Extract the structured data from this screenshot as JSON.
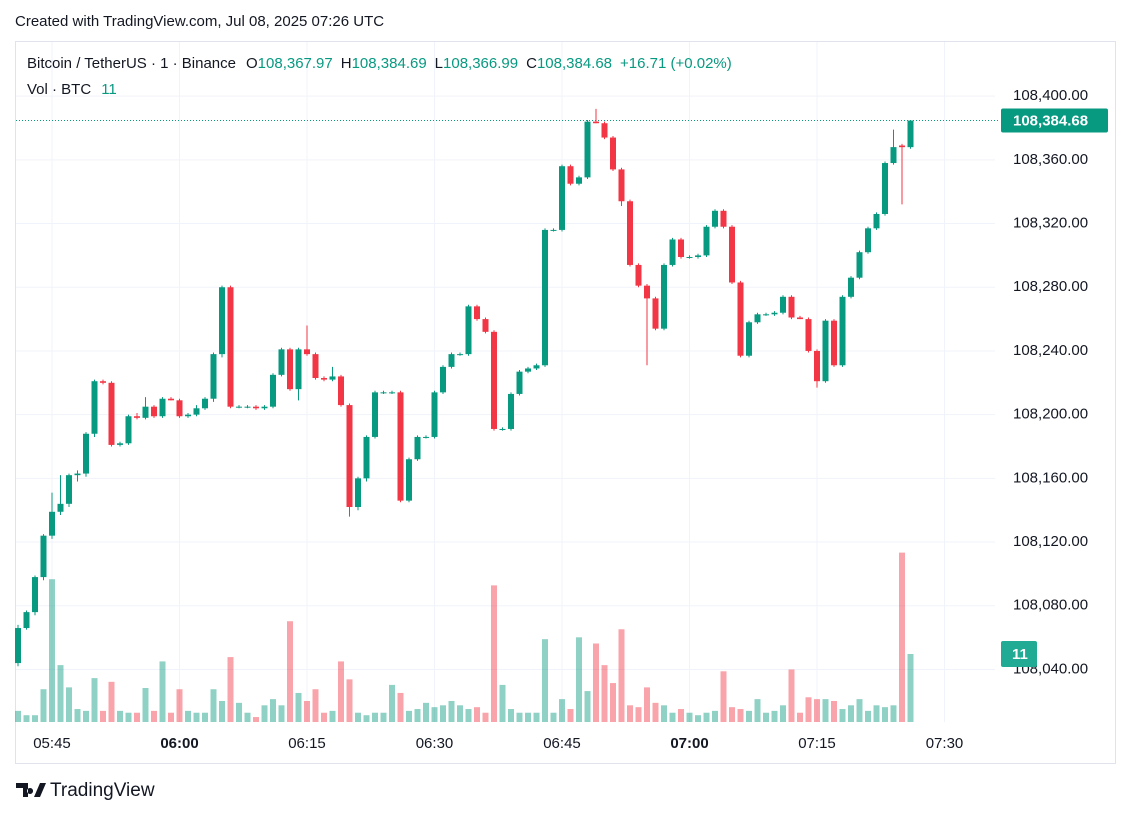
{
  "header": {
    "created": "Created with TradingView.com, Jul 08, 2025 07:26 UTC"
  },
  "footer": {
    "brand": "TradingView"
  },
  "chart_data": {
    "type": "candlestick",
    "title": "Bitcoin / TetherUS · 1 · Binance",
    "legend": [
      {
        "key": "O",
        "value": "108,367.97"
      },
      {
        "key": "H",
        "value": "108,384.69"
      },
      {
        "key": "L",
        "value": "108,366.99"
      },
      {
        "key": "C",
        "value": "108,384.68"
      }
    ],
    "change": "+16.71 (+0.02%)",
    "up_color": "#089981",
    "down_color": "#f23645",
    "grid": true,
    "x": [
      "05:41",
      "05:42",
      "05:43",
      "05:44",
      "05:45",
      "05:46",
      "05:47",
      "05:48",
      "05:49",
      "05:50",
      "05:51",
      "05:52",
      "05:53",
      "05:54",
      "05:55",
      "05:56",
      "05:57",
      "05:58",
      "05:59",
      "06:00",
      "06:01",
      "06:02",
      "06:03",
      "06:04",
      "06:05",
      "06:06",
      "06:07",
      "06:08",
      "06:09",
      "06:10",
      "06:11",
      "06:12",
      "06:13",
      "06:14",
      "06:15",
      "06:16",
      "06:17",
      "06:18",
      "06:19",
      "06:20",
      "06:21",
      "06:22",
      "06:23",
      "06:24",
      "06:25",
      "06:26",
      "06:27",
      "06:28",
      "06:29",
      "06:30",
      "06:31",
      "06:32",
      "06:33",
      "06:34",
      "06:35",
      "06:36",
      "06:37",
      "06:38",
      "06:39",
      "06:40",
      "06:41",
      "06:42",
      "06:43",
      "06:44",
      "06:45",
      "06:46",
      "06:47",
      "06:48",
      "06:49",
      "06:50",
      "06:51",
      "06:52",
      "06:53",
      "06:54",
      "06:55",
      "06:56",
      "06:57",
      "06:58",
      "06:59",
      "07:00",
      "07:01",
      "07:02",
      "07:03",
      "07:04",
      "07:05",
      "07:06",
      "07:07",
      "07:08",
      "07:09",
      "07:10",
      "07:11",
      "07:12",
      "07:13",
      "07:14",
      "07:15",
      "07:16",
      "07:17",
      "07:18",
      "07:19",
      "07:20",
      "07:21",
      "07:22",
      "07:23",
      "07:24",
      "07:25",
      "07:26"
    ],
    "ohlc": {
      "open": [
        108044,
        108066,
        108076,
        108098,
        108124,
        108139,
        108144,
        108162,
        108163,
        108188,
        108221,
        108220,
        108181,
        108182,
        108199,
        108198,
        108205,
        108199,
        108210,
        108209,
        108199,
        108200,
        108204,
        108210,
        108238,
        108280,
        108205,
        108205,
        108205,
        108204,
        108205,
        108225,
        108241,
        108216,
        108241,
        108238,
        108223,
        108222,
        108224,
        108206,
        108142,
        108160,
        108186,
        108214,
        108214,
        108214,
        108146,
        108172,
        108186,
        108186,
        108214,
        108230,
        108238,
        108238,
        108268,
        108260,
        108252,
        108191,
        108191,
        108213,
        108227,
        108229,
        108231,
        108316,
        108316,
        108356,
        108345,
        108349,
        108384,
        108383,
        108374,
        108354,
        108334,
        108294,
        108281,
        108273,
        108254,
        108294,
        108310,
        108299,
        108299,
        108300,
        108318,
        108328,
        108318,
        108283,
        108237,
        108258,
        108263,
        108263,
        108264,
        108274,
        108261,
        108260,
        108240,
        108221,
        108259,
        108231,
        108274,
        108286,
        108302,
        108317,
        108326,
        108358,
        108369,
        108367.97
      ],
      "high": [
        108068,
        108077,
        108099,
        108125,
        108151,
        108162,
        108163,
        108165,
        108189,
        108222,
        108222,
        108221,
        108183,
        108200,
        108201,
        108211,
        108206,
        108211,
        108211,
        108210,
        108201,
        108206,
        108211,
        108239,
        108281,
        108281,
        108206,
        108206,
        108206,
        108206,
        108226,
        108242,
        108242,
        108242,
        108256,
        108239,
        108224,
        108230,
        108225,
        108207,
        108161,
        108187,
        108215,
        108215,
        108215,
        108215,
        108173,
        108187,
        108187,
        108215,
        108231,
        108239,
        108239,
        108269,
        108269,
        108261,
        108253,
        108192,
        108214,
        108228,
        108230,
        108232,
        108317,
        108317,
        108357,
        108357,
        108350,
        108385,
        108392,
        108384,
        108375,
        108355,
        108335,
        108295,
        108282,
        108274,
        108295,
        108311,
        108311,
        108300,
        108301,
        108319,
        108329,
        108329,
        108319,
        108284,
        108259,
        108264,
        108264,
        108265,
        108275,
        108275,
        108262,
        108261,
        108241,
        108260,
        108260,
        108275,
        108287,
        108303,
        108318,
        108327,
        108359,
        108379,
        108370,
        108384.69
      ],
      "low": [
        108042,
        108065,
        108074,
        108096,
        108122,
        108137,
        108142,
        108158,
        108161,
        108186,
        108219,
        108180,
        108180,
        108181,
        108197,
        108197,
        108198,
        108198,
        108209,
        108198,
        108198,
        108199,
        108203,
        108208,
        108236,
        108204,
        108204,
        108204,
        108203,
        108203,
        108204,
        108224,
        108215,
        108209,
        108237,
        108222,
        108221,
        108221,
        108205,
        108136,
        108140,
        108158,
        108185,
        108213,
        108213,
        108145,
        108145,
        108171,
        108185,
        108185,
        108213,
        108229,
        108237,
        108237,
        108259,
        108251,
        108190,
        108190,
        108190,
        108212,
        108226,
        108228,
        108230,
        108315,
        108315,
        108344,
        108344,
        108348,
        108383,
        108373,
        108353,
        108331,
        108293,
        108280,
        108231,
        108253,
        108253,
        108293,
        108298,
        108298,
        108298,
        108299,
        108317,
        108317,
        108282,
        108236,
        108236,
        108257,
        108262,
        108262,
        108263,
        108260,
        108260,
        108239,
        108217,
        108220,
        108230,
        108230,
        108273,
        108285,
        108301,
        108316,
        108325,
        108357,
        108332,
        108366.99
      ],
      "close": [
        108066,
        108076,
        108098,
        108124,
        108139,
        108144,
        108162,
        108163,
        108188,
        108221,
        108220,
        108181,
        108182,
        108199,
        108198,
        108205,
        108199,
        108210,
        108209,
        108199,
        108200,
        108204,
        108210,
        108238,
        108280,
        108205,
        108205,
        108205,
        108204,
        108205,
        108225,
        108241,
        108216,
        108241,
        108238,
        108223,
        108222,
        108224,
        108206,
        108142,
        108160,
        108186,
        108214,
        108214,
        108214,
        108146,
        108172,
        108186,
        108186,
        108214,
        108230,
        108238,
        108238,
        108268,
        108260,
        108252,
        108191,
        108191,
        108213,
        108227,
        108229,
        108231,
        108316,
        108316,
        108356,
        108345,
        108349,
        108384,
        108383,
        108374,
        108354,
        108334,
        108294,
        108281,
        108273,
        108254,
        108294,
        108310,
        108299,
        108299,
        108300,
        108318,
        108328,
        108318,
        108283,
        108237,
        108258,
        108263,
        108263,
        108264,
        108274,
        108261,
        108260,
        108240,
        108221,
        108259,
        108231,
        108274,
        108286,
        108302,
        108317,
        108326,
        108358,
        108368,
        108367.97,
        108384.68
      ]
    },
    "volume": {
      "label": "Vol · BTC",
      "values": [
        1.8,
        1.1,
        1.1,
        5.3,
        23.1,
        9.2,
        5.6,
        2.1,
        1.8,
        7.1,
        1.8,
        6.5,
        1.8,
        1.5,
        1.5,
        5.5,
        1.8,
        9.8,
        1.5,
        5.3,
        1.8,
        1.5,
        1.5,
        5.3,
        3.4,
        10.5,
        3.1,
        1.5,
        0.8,
        2.7,
        3.7,
        2.7,
        16.3,
        4.7,
        3.4,
        5.3,
        1.5,
        1.8,
        9.8,
        6.9,
        1.5,
        1.1,
        1.5,
        1.5,
        6.0,
        4.7,
        1.8,
        2.1,
        3.1,
        2.4,
        2.7,
        3.4,
        2.7,
        2.1,
        2.4,
        1.5,
        22.1,
        6.0,
        2.1,
        1.5,
        1.5,
        1.5,
        13.4,
        1.5,
        3.7,
        2.1,
        13.7,
        5.0,
        12.7,
        9.2,
        6.3,
        15,
        2.7,
        2.4,
        5.6,
        3.1,
        2.7,
        1.5,
        2.1,
        1.5,
        1.1,
        1.5,
        1.8,
        8.2,
        2.4,
        2.1,
        1.8,
        3.7,
        1.5,
        1.8,
        2.7,
        8.5,
        1.5,
        4.0,
        3.7,
        3.7,
        3.4,
        2.1,
        2.7,
        3.7,
        1.8,
        2.7,
        2.4,
        2.7,
        27.4,
        11
      ]
    },
    "last_price": {
      "value": 108384.68,
      "label": "108,384.68"
    },
    "ylim": [
      108007,
      108434
    ],
    "yticks": [
      {
        "value": 108040,
        "label": "108,040.00"
      },
      {
        "value": 108080,
        "label": "108,080.00"
      },
      {
        "value": 108120,
        "label": "108,120.00"
      },
      {
        "value": 108160,
        "label": "108,160.00"
      },
      {
        "value": 108200,
        "label": "108,200.00"
      },
      {
        "value": 108240,
        "label": "108,240.00"
      },
      {
        "value": 108280,
        "label": "108,280.00"
      },
      {
        "value": 108320,
        "label": "108,320.00"
      },
      {
        "value": 108360,
        "label": "108,360.00"
      },
      {
        "value": 108400,
        "label": "108,400.00"
      }
    ],
    "y2lim": [
      0,
      110
    ],
    "xticks": [
      "05:45",
      "06:00",
      "06:15",
      "06:30",
      "06:45",
      "07:00",
      "07:15",
      "07:30"
    ]
  }
}
